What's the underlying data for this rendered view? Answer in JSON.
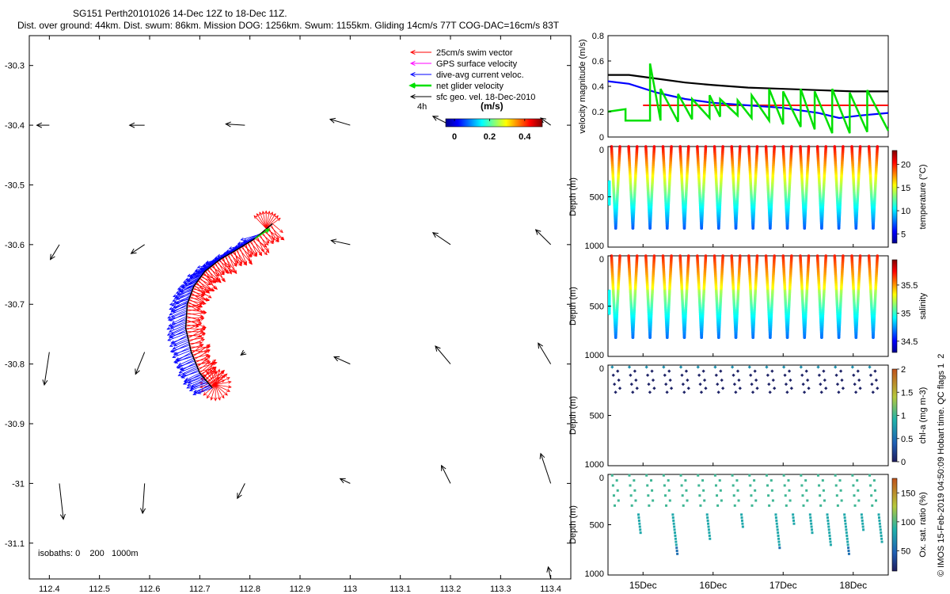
{
  "header": {
    "line1": "SG151 Perth20101026 14-Dec 12Z to 18-Dec 11Z.",
    "line2": "Dist. over ground: 44km. Dist. swum: 86km. Mission DOG: 1256km. Swum: 1155km. Gliding 14cm/s 77T COG-DAC=16cm/s 83T"
  },
  "credit": "© IMOS 15-Feb-2019 04:50:09 Hobart time. QC flags 1  2",
  "colors": {
    "swim": "#ff0000",
    "gps": "#ff00ff",
    "dac": "#0000ff",
    "net": "#00e000",
    "geo": "#000000",
    "threshold": "#ff0000"
  },
  "chart_data": [
    {
      "id": "map",
      "type": "scatter",
      "title": "",
      "xlabel": "",
      "ylabel": "",
      "xlim": [
        112.36,
        113.44
      ],
      "ylim": [
        -31.16,
        -30.25
      ],
      "x_ticks": [
        112.4,
        112.5,
        112.6,
        112.7,
        112.8,
        112.9,
        113,
        113.1,
        113.2,
        113.3,
        113.4
      ],
      "x_tick_labels": [
        "112.4",
        "112.5",
        "112.6",
        "112.7",
        "112.8",
        "112.9",
        "113",
        "113.1",
        "113.2",
        "113.3",
        "113.4"
      ],
      "y_ticks": [
        -30.3,
        -30.4,
        -30.5,
        -30.6,
        -30.7,
        -30.8,
        -30.9,
        -31,
        -31.1
      ],
      "y_tick_labels": [
        "-30.3",
        "-30.4",
        "-30.5",
        "-30.6",
        "-30.7",
        "-30.8",
        "-30.9",
        "-31",
        "-31.1"
      ],
      "legend": [
        {
          "label": "25cm/s swim vector",
          "color": "#ff0000"
        },
        {
          "label": "GPS surface velocity",
          "color": "#ff00ff"
        },
        {
          "label": "dive-avg current veloc.",
          "color": "#0000ff"
        },
        {
          "label": "net glider velocity",
          "color": "#00e000"
        },
        {
          "label": "sfc geo. vel. 18-Dec-2010",
          "color": "#000000"
        }
      ],
      "legend_position": "top-right",
      "time_label": "4h",
      "colorbar": {
        "title": "(m/s)",
        "ticks": [
          0,
          0.2,
          0.4
        ],
        "tick_labels": [
          "0",
          "0.2",
          "0.4"
        ],
        "range": [
          -0.05,
          0.5
        ]
      },
      "isobaths_label": "isobaths: 0    200   1000m",
      "geo_vectors": [
        {
          "x": 112.4,
          "y": -30.4,
          "u": -0.025,
          "v": 0.0
        },
        {
          "x": 112.59,
          "y": -30.4,
          "u": -0.03,
          "v": 0.0
        },
        {
          "x": 112.79,
          "y": -30.4,
          "u": -0.038,
          "v": 0.002
        },
        {
          "x": 113.0,
          "y": -30.4,
          "u": -0.04,
          "v": 0.01
        },
        {
          "x": 113.2,
          "y": -30.4,
          "u": -0.035,
          "v": 0.015
        },
        {
          "x": 113.4,
          "y": -30.4,
          "u": -0.02,
          "v": 0.012
        },
        {
          "x": 112.42,
          "y": -30.6,
          "u": -0.018,
          "v": -0.025
        },
        {
          "x": 112.59,
          "y": -30.6,
          "u": -0.027,
          "v": -0.015
        },
        {
          "x": 113.0,
          "y": -30.6,
          "u": -0.038,
          "v": 0.007
        },
        {
          "x": 113.2,
          "y": -30.6,
          "u": -0.035,
          "v": 0.02
        },
        {
          "x": 113.4,
          "y": -30.6,
          "u": -0.03,
          "v": 0.025
        },
        {
          "x": 112.4,
          "y": -30.78,
          "u": -0.01,
          "v": -0.055
        },
        {
          "x": 112.59,
          "y": -30.78,
          "u": -0.018,
          "v": -0.037
        },
        {
          "x": 112.79,
          "y": -30.78,
          "u": -0.008,
          "v": -0.005
        },
        {
          "x": 113.0,
          "y": -30.8,
          "u": -0.032,
          "v": 0.012
        },
        {
          "x": 113.2,
          "y": -30.8,
          "u": -0.03,
          "v": 0.03
        },
        {
          "x": 113.4,
          "y": -30.8,
          "u": -0.025,
          "v": 0.035
        },
        {
          "x": 112.42,
          "y": -31.0,
          "u": 0.008,
          "v": -0.06
        },
        {
          "x": 112.59,
          "y": -31.0,
          "u": -0.004,
          "v": -0.05
        },
        {
          "x": 112.79,
          "y": -31.0,
          "u": -0.015,
          "v": -0.025
        },
        {
          "x": 113.0,
          "y": -31.0,
          "u": -0.02,
          "v": 0.008
        },
        {
          "x": 113.2,
          "y": -31.0,
          "u": -0.018,
          "v": 0.03
        },
        {
          "x": 113.4,
          "y": -31.0,
          "u": -0.02,
          "v": 0.05
        },
        {
          "x": 113.4,
          "y": -31.16,
          "u": -0.005,
          "v": 0.02
        }
      ],
      "glider_track": [
        {
          "x": 112.725,
          "y": -30.84
        },
        {
          "x": 112.7,
          "y": -30.815
        },
        {
          "x": 112.683,
          "y": -30.78
        },
        {
          "x": 112.672,
          "y": -30.74
        },
        {
          "x": 112.675,
          "y": -30.7
        },
        {
          "x": 112.688,
          "y": -30.67
        },
        {
          "x": 112.71,
          "y": -30.645
        },
        {
          "x": 112.74,
          "y": -30.625
        },
        {
          "x": 112.775,
          "y": -30.608
        },
        {
          "x": 112.81,
          "y": -30.59
        },
        {
          "x": 112.845,
          "y": -30.565
        }
      ]
    },
    {
      "id": "velocity",
      "type": "line",
      "ylabel": "velocity magnitude (m/s)",
      "xlim": [
        14.5,
        18.5
      ],
      "ylim": [
        0,
        0.8
      ],
      "y_ticks": [
        0,
        0.2,
        0.4,
        0.6,
        0.8
      ],
      "y_tick_labels": [
        "0",
        "0.2",
        "0.4",
        "0.6",
        "0.8"
      ],
      "threshold": {
        "value": 0.25,
        "x_start": 15.0
      },
      "series": [
        {
          "name": "sfc geo",
          "color": "#000000",
          "x": [
            14.5,
            14.8,
            15.2,
            15.6,
            16.0,
            16.5,
            17.0,
            17.5,
            18.0,
            18.5
          ],
          "values": [
            0.49,
            0.49,
            0.46,
            0.43,
            0.41,
            0.39,
            0.38,
            0.37,
            0.36,
            0.36
          ]
        },
        {
          "name": "dive-avg",
          "color": "#0000ff",
          "x": [
            14.5,
            14.8,
            15.2,
            15.6,
            16.0,
            16.5,
            17.0,
            17.5,
            17.8,
            18.1,
            18.5
          ],
          "values": [
            0.44,
            0.42,
            0.35,
            0.3,
            0.27,
            0.25,
            0.23,
            0.19,
            0.15,
            0.17,
            0.19
          ]
        },
        {
          "name": "net glider",
          "color": "#00e000",
          "x": [
            14.5,
            14.75,
            14.75,
            15.1,
            15.1,
            15.25,
            15.25,
            15.5,
            15.5,
            15.7,
            15.7,
            15.95,
            15.95,
            16.1,
            16.1,
            16.35,
            16.35,
            16.55,
            16.55,
            16.8,
            16.8,
            17.0,
            17.0,
            17.25,
            17.25,
            17.45,
            17.45,
            17.7,
            17.7,
            17.95,
            17.95,
            18.2,
            18.2,
            18.5
          ],
          "values": [
            0.2,
            0.22,
            0.13,
            0.13,
            0.58,
            0.13,
            0.38,
            0.12,
            0.34,
            0.14,
            0.3,
            0.15,
            0.33,
            0.16,
            0.3,
            0.17,
            0.29,
            0.15,
            0.33,
            0.13,
            0.38,
            0.1,
            0.36,
            0.08,
            0.38,
            0.06,
            0.36,
            0.03,
            0.38,
            0.03,
            0.35,
            0.04,
            0.37,
            0.05
          ]
        }
      ]
    },
    {
      "id": "temperature",
      "type": "scatter",
      "ylabel": "Depth (m)",
      "colorbar_label": "temperature (°C)",
      "ylim": [
        0,
        1000
      ],
      "y_ticks": [
        0,
        500,
        1000
      ],
      "y_tick_labels": [
        "0",
        "500",
        "1000"
      ],
      "colorbar": {
        "range": [
          3,
          23
        ],
        "ticks": [
          5,
          10,
          15,
          20
        ],
        "tick_labels": [
          "5",
          "10",
          "15",
          "20"
        ]
      },
      "profile": {
        "max_depth": 820,
        "surface_value": 22,
        "deep_value": 5.5,
        "thermocline": 350
      }
    },
    {
      "id": "salinity",
      "type": "scatter",
      "ylabel": "Depth (m)",
      "colorbar_label": "salinity",
      "ylim": [
        0,
        1000
      ],
      "y_ticks": [
        0,
        500,
        1000
      ],
      "y_tick_labels": [
        "0",
        "500",
        "1000"
      ],
      "colorbar": {
        "range": [
          34.3,
          35.95
        ],
        "ticks": [
          34.5,
          35,
          35.5
        ],
        "tick_labels": [
          "34.5",
          "35",
          "35.5"
        ]
      },
      "profile": {
        "max_depth": 820,
        "surface_value": 35.8,
        "deep_value": 34.45,
        "thermocline": 350
      }
    },
    {
      "id": "chl",
      "type": "scatter",
      "ylabel": "Depth (m)",
      "colorbar_label": "chl-a (mg m-3)",
      "xlim": [
        14.5,
        18.5
      ],
      "ylim": [
        0,
        1000
      ],
      "y_ticks": [
        0,
        500,
        1000
      ],
      "y_tick_labels": [
        "0",
        "500",
        "1000"
      ],
      "colorbar": {
        "range": [
          0,
          2
        ],
        "ticks": [
          0,
          0.5,
          1,
          1.5,
          2
        ],
        "tick_labels": [
          "0",
          "0.5",
          "1",
          "1.5",
          "2"
        ]
      },
      "profile": {
        "max_depth": 270
      }
    },
    {
      "id": "oxygen",
      "type": "scatter",
      "ylabel": "Depth (m)",
      "colorbar_label": "Ox. sat. ratio (%)",
      "xlim": [
        14.5,
        18.5
      ],
      "ylim": [
        0,
        1000
      ],
      "y_ticks": [
        0,
        500,
        1000
      ],
      "y_tick_labels": [
        "0",
        "500",
        "1000"
      ],
      "x_ticks": [
        15,
        16,
        17,
        18
      ],
      "x_tick_labels": [
        "15Dec",
        "16Dec",
        "17Dec",
        "18Dec"
      ],
      "colorbar": {
        "range": [
          15,
          175
        ],
        "ticks": [
          50,
          100,
          150
        ],
        "tick_labels": [
          "50",
          "100",
          "150"
        ]
      },
      "profile": {
        "max_depth": 820
      }
    }
  ]
}
